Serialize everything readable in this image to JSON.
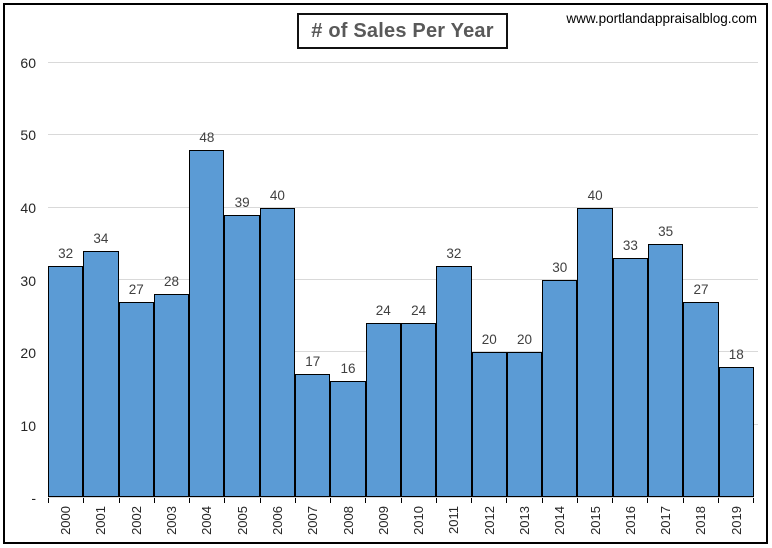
{
  "header": {
    "title": "# of Sales Per Year",
    "website": "www.portlandappraisalblog.com"
  },
  "chart_data": {
    "type": "bar",
    "title": "# of Sales Per Year",
    "categories": [
      "2000",
      "2001",
      "2002",
      "2003",
      "2004",
      "2005",
      "2006",
      "2007",
      "2008",
      "2009",
      "2010",
      "2011",
      "2012",
      "2013",
      "2014",
      "2015",
      "2016",
      "2017",
      "2018",
      "2019"
    ],
    "values": [
      32,
      34,
      27,
      28,
      48,
      39,
      40,
      17,
      16,
      24,
      24,
      32,
      20,
      20,
      30,
      40,
      33,
      35,
      27,
      18
    ],
    "xlabel": "",
    "ylabel": "",
    "ylim": [
      0,
      60
    ],
    "yticks": [
      {
        "value": 60,
        "label": "60"
      },
      {
        "value": 50,
        "label": "50"
      },
      {
        "value": 40,
        "label": "40"
      },
      {
        "value": 30,
        "label": "30"
      },
      {
        "value": 20,
        "label": "20"
      },
      {
        "value": 10,
        "label": "10"
      },
      {
        "value": 0,
        "label": "-"
      }
    ],
    "grid": true,
    "legend": false,
    "data_labels": true,
    "colors": {
      "bar_fill": "#5B9BD5",
      "bar_border": "#000000",
      "gridline": "#D9D9D9",
      "data_label": "#404040",
      "axis_label": "#262626",
      "title_text": "#595959",
      "frame_border": "#000000"
    }
  }
}
